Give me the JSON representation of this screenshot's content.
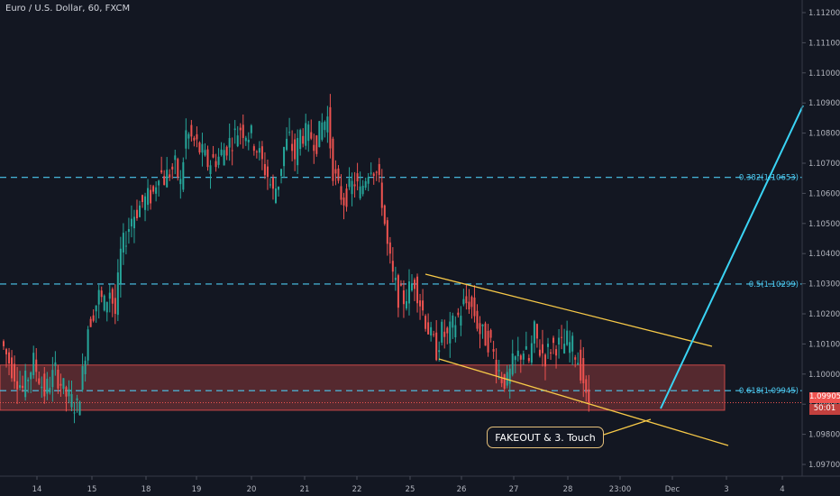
{
  "header": {
    "title": "Euro / U.S. Dollar, 60, FXCM"
  },
  "chart_data": {
    "type": "candlestick",
    "title": "Euro / U.S. Dollar, 60, FXCM",
    "ylim": [
      1.0966,
      1.1125
    ],
    "yticks": [
      "1.11200",
      "1.11100",
      "1.11000",
      "1.10900",
      "1.10800",
      "1.10700",
      "1.10600",
      "1.10500",
      "1.10400",
      "1.10300",
      "1.10200",
      "1.10100",
      "1.10000",
      "1.09900",
      "1.09800",
      "1.09700"
    ],
    "x_ticks": [
      "14",
      "15",
      "18",
      "19",
      "20",
      "21",
      "22",
      "25",
      "26",
      "27",
      "28",
      "23:00",
      "Dec",
      "3",
      "4"
    ],
    "price_path": [
      [
        0,
        1.1011
      ],
      [
        2,
        1.1002
      ],
      [
        4,
        1.0995
      ],
      [
        6,
        1.1004
      ],
      [
        8,
        1.0994
      ],
      [
        10,
        1.1001
      ],
      [
        12,
        1.0993
      ],
      [
        14,
        1.0989
      ],
      [
        15,
        1.1
      ],
      [
        16,
        1.1016
      ],
      [
        18,
        1.1026
      ],
      [
        19,
        1.1023
      ],
      [
        20,
        1.1028
      ],
      [
        21,
        1.102
      ],
      [
        22,
        1.104
      ],
      [
        24,
        1.1052
      ],
      [
        26,
        1.1057
      ],
      [
        28,
        1.106
      ],
      [
        29,
        1.1068
      ],
      [
        30,
        1.1065
      ],
      [
        32,
        1.1069
      ],
      [
        33,
        1.1063
      ],
      [
        34,
        1.108
      ],
      [
        36,
        1.1076
      ],
      [
        38,
        1.107
      ],
      [
        40,
        1.1072
      ],
      [
        42,
        1.1077
      ],
      [
        44,
        1.1082
      ],
      [
        46,
        1.1079
      ],
      [
        47,
        1.1075
      ],
      [
        48,
        1.107
      ],
      [
        49,
        1.1066
      ],
      [
        50,
        1.106
      ],
      [
        51,
        1.1064
      ],
      [
        52,
        1.1075
      ],
      [
        53,
        1.1078
      ],
      [
        54,
        1.1072
      ],
      [
        55,
        1.108
      ],
      [
        57,
        1.1079
      ],
      [
        58,
        1.1077
      ],
      [
        59,
        1.1083
      ],
      [
        60,
        1.1085
      ],
      [
        61,
        1.1068
      ],
      [
        62,
        1.1061
      ],
      [
        63,
        1.1058
      ],
      [
        65,
        1.1064
      ],
      [
        66,
        1.106
      ],
      [
        67,
        1.1066
      ],
      [
        68,
        1.107
      ],
      [
        69,
        1.1067
      ],
      [
        70,
        1.1058
      ],
      [
        71,
        1.1042
      ],
      [
        72,
        1.1032
      ],
      [
        73,
        1.1026
      ],
      [
        74,
        1.1025
      ],
      [
        75,
        1.1028
      ],
      [
        76,
        1.1031
      ],
      [
        77,
        1.1024
      ],
      [
        78,
        1.1018
      ],
      [
        79,
        1.1012
      ],
      [
        80,
        1.1008
      ],
      [
        81,
        1.1014
      ],
      [
        82,
        1.1012
      ],
      [
        83,
        1.1016
      ],
      [
        84,
        1.1019
      ],
      [
        85,
        1.1023
      ],
      [
        86,
        1.1024
      ],
      [
        87,
        1.102
      ],
      [
        88,
        1.1014
      ],
      [
        89,
        1.1012
      ],
      [
        90,
        1.101
      ],
      [
        91,
        1.1003
      ],
      [
        92,
        1.0999
      ],
      [
        93,
        1.0997
      ],
      [
        94,
        1.1003
      ],
      [
        95,
        1.1006
      ],
      [
        96,
        1.1008
      ],
      [
        97,
        1.1004
      ],
      [
        98,
        1.1014
      ],
      [
        99,
        1.1008
      ],
      [
        100,
        1.1006
      ],
      [
        101,
        1.1009
      ],
      [
        102,
        1.101
      ],
      [
        103,
        1.1009
      ],
      [
        104,
        1.1011
      ],
      [
        105,
        1.1009
      ],
      [
        106,
        1.1005
      ],
      [
        107,
        1.0998
      ],
      [
        107.5,
        1.0991
      ]
    ],
    "events_x": {
      "start": "13",
      "step_days": 1
    },
    "fib_levels": [
      {
        "label": "0.382(1.10653)",
        "price": 1.10653
      },
      {
        "label": "0.5(1.10299)",
        "price": 1.10299
      },
      {
        "label": "0.618(1.09945)",
        "price": 1.09945
      }
    ],
    "support_zone": {
      "low": 1.0988,
      "high": 1.1003
    },
    "channel": {
      "upper": [
        [
          1.1031,
          25.2
        ],
        [
          1.1009,
          29.5
        ]
      ],
      "lower": [
        [
          1.1006,
          25.2
        ],
        [
          1.0976,
          29.5
        ]
      ]
    },
    "current_price": "1.09905",
    "countdown": "50:01",
    "annotation": "FAKEOUT & 3. Touch",
    "colors": {
      "up": "#26a69a",
      "down": "#ef5350",
      "fib": "#4cc9f0",
      "channel": "#f7c948",
      "projection": "#3ad4f5",
      "zone": "#ef5350"
    }
  }
}
